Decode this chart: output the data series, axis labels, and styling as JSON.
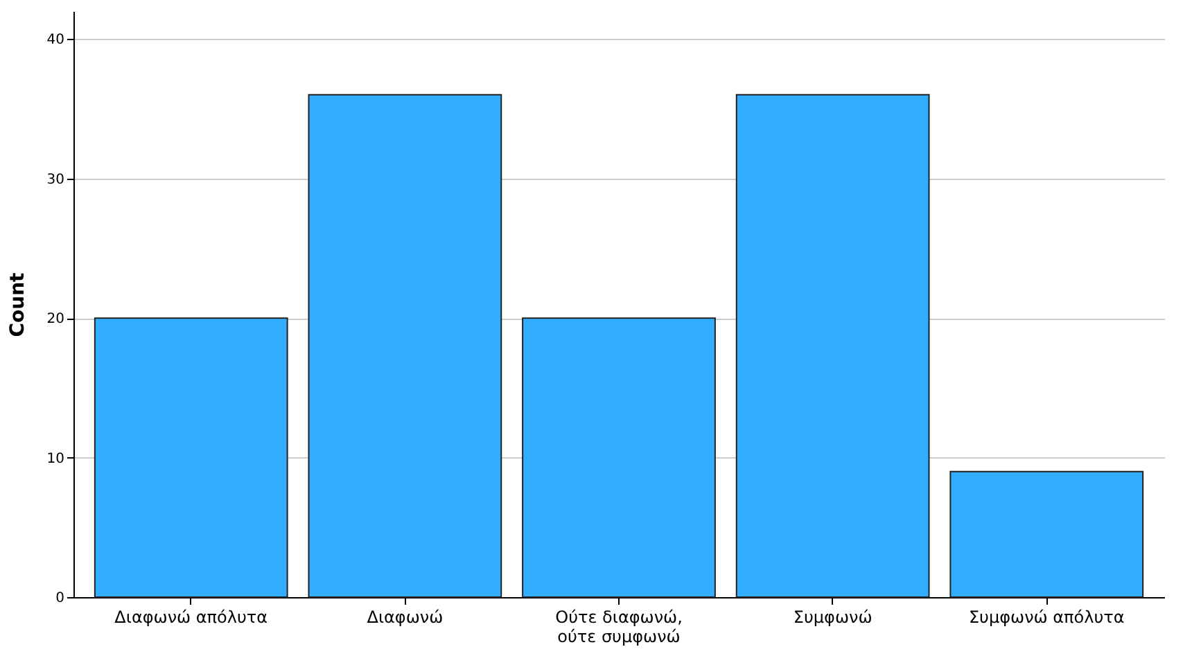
{
  "chart_data": {
    "type": "bar",
    "ylabel": "Count",
    "categories": [
      "Διαφωνώ απόλυτα",
      "Διαφωνώ",
      "Ούτε διαφωνώ, ούτε συμφωνώ",
      "Συμφωνώ",
      "Συμφωνώ απόλυτα"
    ],
    "values": [
      20,
      36,
      20,
      36,
      9
    ],
    "color": "#33adff",
    "ylim": [
      0,
      42
    ],
    "yticks": [
      0,
      10,
      20,
      30,
      40
    ],
    "grid": "y"
  }
}
